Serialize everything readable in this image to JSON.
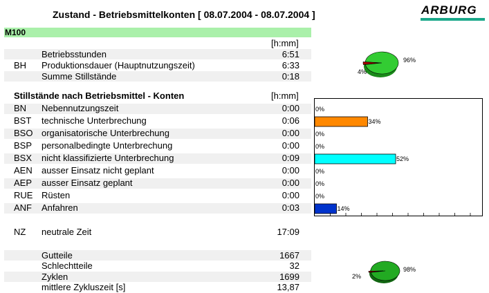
{
  "header": {
    "title": "Zustand - Betriebsmittelkonten [ 08.07.2004 - 08.07.2004 ]",
    "logo": "ARBURG",
    "logo_color": "#1aa88a"
  },
  "machine": {
    "label": "M100",
    "bar_color": "#aaf0aa"
  },
  "bh": {
    "code": "BH",
    "unit": "[h:mm]",
    "rows": [
      {
        "label": "Betriebsstunden",
        "value": "6:51"
      },
      {
        "label": "Produktionsdauer (Hauptnutzungszeit)",
        "value": "6:33"
      },
      {
        "label": "Summe Stillstände",
        "value": "0:18"
      }
    ],
    "pie": {
      "main_pct": 96,
      "rest_pct": 4,
      "main_label": "96%",
      "rest_label": "4%",
      "main_color": "#33cc33",
      "rest_color": "#aa0000"
    }
  },
  "stillstaende": {
    "heading": "Stillstände nach Betriebsmittel - Konten",
    "unit": "[h:mm]",
    "rows": [
      {
        "code": "BN",
        "label": "Nebennutzungszeit",
        "value": "0:00"
      },
      {
        "code": "BST",
        "label": "technische Unterbrechung",
        "value": "0:06"
      },
      {
        "code": "BSO",
        "label": "organisatorische Unterbrechung",
        "value": "0:00"
      },
      {
        "code": "BSP",
        "label": "personalbedingte Unterbrechung",
        "value": "0:00"
      },
      {
        "code": "BSX",
        "label": "nicht klassifizierte Unterbrechung",
        "value": "0:09"
      },
      {
        "code": "AEN",
        "label": "ausser Einsatz nicht geplant",
        "value": "0:00"
      },
      {
        "code": "AEP",
        "label": "ausser Einsatz geplant",
        "value": "0:00"
      },
      {
        "code": "RUE",
        "label": "Rüsten",
        "value": "0:00"
      },
      {
        "code": "ANF",
        "label": "Anfahren",
        "value": "0:03"
      }
    ]
  },
  "chart_data": {
    "type": "bar",
    "orientation": "horizontal",
    "categories": [
      "BN",
      "BST",
      "BSO",
      "BSP",
      "BSX",
      "AEN",
      "AEP",
      "RUE",
      "ANF"
    ],
    "values": [
      0,
      34,
      0,
      0,
      52,
      0,
      0,
      0,
      14
    ],
    "labels": [
      "0%",
      "34%",
      "0%",
      "0%",
      "52%",
      "0%",
      "0%",
      "0%",
      "14%"
    ],
    "colors": [
      "#cccccc",
      "#ff8800",
      "#cccccc",
      "#cccccc",
      "#00ffff",
      "#cccccc",
      "#cccccc",
      "#cccccc",
      "#0033cc"
    ],
    "xlim": [
      0,
      100
    ],
    "grid": false
  },
  "nz": {
    "code": "NZ",
    "label": "neutrale Zeit",
    "value": "17:09"
  },
  "teile": {
    "rows": [
      {
        "label": "Gutteile",
        "value": "1667"
      },
      {
        "label": "Schlechtteile",
        "value": "32"
      },
      {
        "label": "Zyklen",
        "value": "1699"
      },
      {
        "label": "mittlere Zykluszeit [s]",
        "value": "13,87"
      }
    ],
    "pie": {
      "main_pct": 98,
      "rest_pct": 2,
      "main_label": "98%",
      "rest_label": "2%",
      "main_color": "#22aa22",
      "rest_color": "#aa0000"
    }
  }
}
